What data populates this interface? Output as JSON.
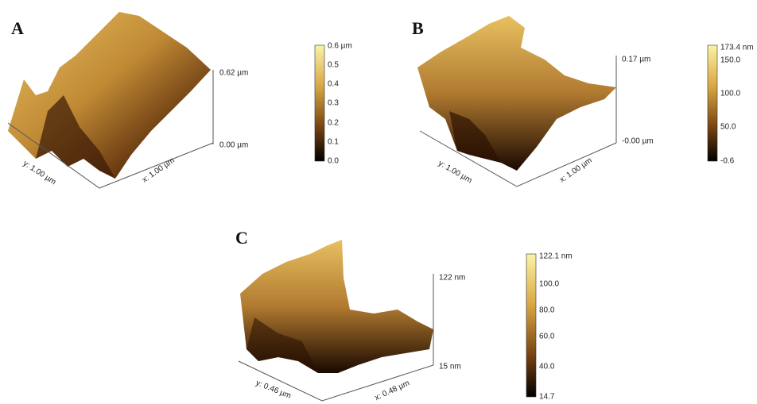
{
  "panels": [
    {
      "label": "A",
      "z_top": "0.62 µm",
      "z_bottom": "0.00 µm",
      "x_axis": "x: 1.00 µm",
      "y_axis": "y: 1.00 µm",
      "colorbar": [
        "0.6 µm",
        "0.5",
        "0.4",
        "0.3",
        "0.2",
        "0.1",
        "0.0"
      ]
    },
    {
      "label": "B",
      "z_top": "0.17 µm",
      "z_bottom": "-0.00 µm",
      "x_axis": "x: 1.00 µm",
      "y_axis": "y: 1.00 µm",
      "colorbar": [
        "173.4 nm",
        "150.0",
        "100.0",
        "50.0",
        "-0.6"
      ]
    },
    {
      "label": "C",
      "z_top": "122 nm",
      "z_bottom": "15 nm",
      "x_axis": "x: 0.48 µm",
      "y_axis": "y: 0.46 µm",
      "colorbar": [
        "122.1 nm",
        "100.0",
        "80.0",
        "60.0",
        "40.0",
        "14.7"
      ]
    }
  ]
}
